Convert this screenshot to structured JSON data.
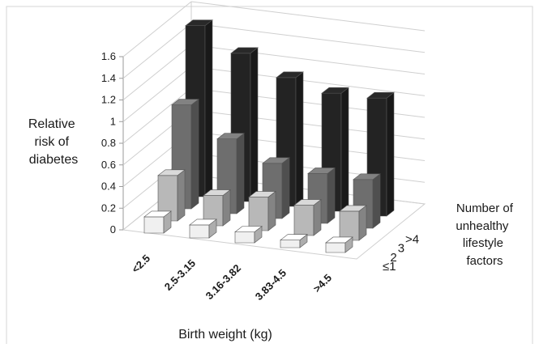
{
  "chart_data": {
    "type": "bar",
    "subtype": "3d-column",
    "title": "",
    "ylabel": "Relative risk of diabetes",
    "xlabel": "Birth weight (kg)",
    "zlabel": "Number of unhealthy lifestyle factors",
    "ylim": [
      0,
      1.6
    ],
    "yticks": [
      "0",
      "0.2",
      "0.4",
      "0.6",
      "0.8",
      "1",
      "1.2",
      "1.4",
      "1.6"
    ],
    "categories": [
      "<2.5",
      "2.5-3.15",
      "3.16-3.82",
      "3.83-4.5",
      ">4.5"
    ],
    "series": [
      {
        "name": "≤1",
        "color": "#f0f0f0",
        "values": [
          0.15,
          0.12,
          0.1,
          0.07,
          0.09
        ]
      },
      {
        "name": "2",
        "color": "#b8b8b8",
        "values": [
          0.42,
          0.28,
          0.31,
          0.28,
          0.27
        ]
      },
      {
        "name": "3",
        "color": "#6e6e6e",
        "values": [
          0.96,
          0.69,
          0.51,
          0.46,
          0.45
        ]
      },
      {
        "name": ">4",
        "color": "#232323",
        "values": [
          1.58,
          1.37,
          1.19,
          1.09,
          1.09
        ]
      }
    ],
    "grid": true,
    "legend": "none"
  }
}
